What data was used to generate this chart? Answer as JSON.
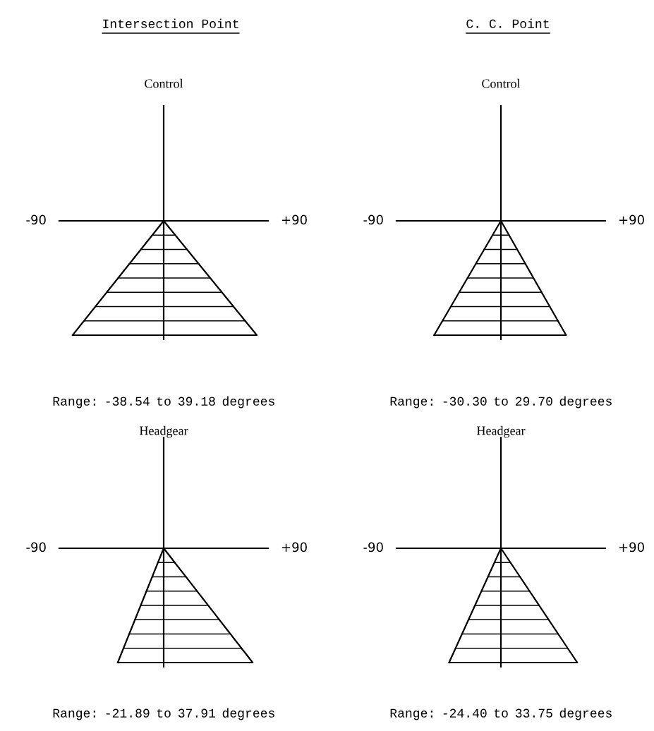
{
  "chart_data": [
    {
      "type": "other",
      "title": "Intersection Point",
      "subtitle": "Control",
      "values": [
        -38.54,
        39.18
      ],
      "value_labels": [
        "-38.54",
        "39.18"
      ],
      "annotations": [
        "-90",
        "+90",
        "Range:",
        "to",
        "degrees"
      ]
    },
    {
      "type": "other",
      "title": "C. C. Point",
      "subtitle": "Control",
      "values": [
        -30.3,
        29.7
      ],
      "value_labels": [
        "-30.30",
        "29.70"
      ],
      "annotations": [
        "-90",
        "+90",
        "Range:",
        "to",
        "degrees"
      ]
    },
    {
      "type": "other",
      "title": "Headgear",
      "values": [
        -21.89,
        37.91
      ],
      "value_labels": [
        "-21.89",
        "37.91"
      ],
      "annotations": [
        "-90",
        "+90",
        "Range:",
        "to",
        "degrees"
      ]
    },
    {
      "type": "other",
      "title": "Headgear",
      "values": [
        -24.4,
        33.75
      ],
      "value_labels": [
        "-24.40",
        "33.75"
      ],
      "annotations": [
        "-90",
        "+90",
        "Range:",
        "to",
        "degrees"
      ]
    }
  ]
}
